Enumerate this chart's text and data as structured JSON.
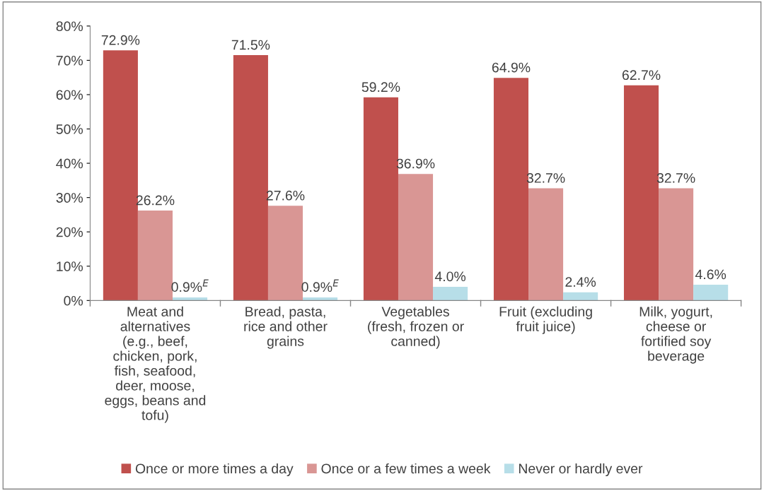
{
  "chart_data": {
    "type": "bar",
    "categories": [
      "Meat and\nalternatives\n(e.g., beef,\nchicken, pork,\nfish, seafood,\ndeer, moose,\neggs, beans and\ntofu)",
      "Bread, pasta,\nrice and other\ngrains",
      "Vegetables\n(fresh, frozen or\ncanned)",
      "Fruit (excluding\nfruit juice)",
      "Milk, yogurt,\ncheese or\nfortified soy\nbeverage"
    ],
    "series": [
      {
        "name": "Once or more times a day",
        "color": "#c0504d",
        "values": [
          72.9,
          71.5,
          59.2,
          64.9,
          62.7
        ],
        "value_labels": [
          "72.9%",
          "71.5%",
          "59.2%",
          "64.9%",
          "62.7%"
        ]
      },
      {
        "name": "Once or a few times a week",
        "color": "#d99694",
        "values": [
          26.2,
          27.6,
          36.9,
          32.7,
          32.7
        ],
        "value_labels": [
          "26.2%",
          "27.6%",
          "36.9%",
          "32.7%",
          "32.7%"
        ]
      },
      {
        "name": "Never or hardly ever",
        "color": "#b7dee8",
        "values": [
          0.9,
          0.9,
          4.0,
          2.4,
          4.6
        ],
        "value_labels": [
          "0.9%$^{E}$",
          "0.9%$^{E}$",
          "4.0%",
          "2.4%",
          "4.6%"
        ]
      }
    ],
    "ylim": [
      0,
      80
    ],
    "yticks": [
      {
        "value": 0,
        "label": "0%"
      },
      {
        "value": 10,
        "label": "10%"
      },
      {
        "value": 20,
        "label": "20%"
      },
      {
        "value": 30,
        "label": "30%"
      },
      {
        "value": 40,
        "label": "40%"
      },
      {
        "value": 50,
        "label": "50%"
      },
      {
        "value": 60,
        "label": "60%"
      },
      {
        "value": 70,
        "label": "70%"
      },
      {
        "value": 80,
        "label": "80%"
      }
    ],
    "grid": false,
    "legend": "bottom"
  }
}
